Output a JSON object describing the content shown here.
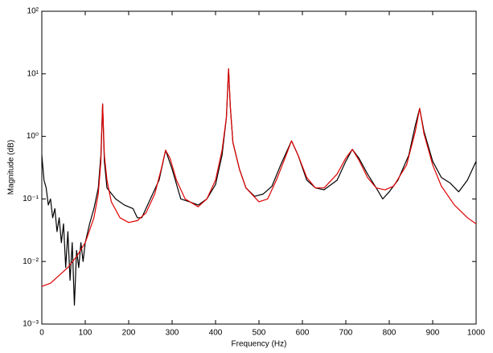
{
  "chart_data": {
    "type": "line",
    "xlabel": "Frequency (Hz)",
    "ylabel": "Magnitude (dB)",
    "xlim": [
      0,
      1000
    ],
    "xticks": [
      0,
      100,
      200,
      300,
      400,
      500,
      600,
      700,
      800,
      900,
      1000
    ],
    "ylim": [
      0.001,
      100
    ],
    "yscale": "log",
    "yticks": [
      {
        "value": 0.001,
        "label": "10⁻³"
      },
      {
        "value": 0.01,
        "label": "10⁻²"
      },
      {
        "value": 0.1,
        "label": "10⁻¹"
      },
      {
        "value": 1,
        "label": "10⁰"
      },
      {
        "value": 10,
        "label": "10¹"
      },
      {
        "value": 100,
        "label": "10²"
      }
    ],
    "series": [
      {
        "color": "#000000",
        "x": [
          0,
          5,
          10,
          15,
          20,
          25,
          30,
          35,
          40,
          45,
          50,
          55,
          60,
          65,
          70,
          75,
          80,
          85,
          90,
          95,
          100,
          110,
          120,
          130,
          136,
          140,
          144,
          150,
          170,
          190,
          210,
          220,
          230,
          250,
          270,
          285,
          300,
          320,
          340,
          360,
          380,
          400,
          415,
          425,
          430,
          434,
          440,
          455,
          470,
          490,
          510,
          530,
          550,
          575,
          590,
          610,
          630,
          650,
          680,
          700,
          715,
          730,
          750,
          770,
          785,
          800,
          820,
          845,
          860,
          870,
          880,
          900,
          920,
          940,
          960,
          980,
          1000
        ],
        "values": [
          0.5,
          0.2,
          0.15,
          0.08,
          0.1,
          0.05,
          0.07,
          0.03,
          0.05,
          0.02,
          0.04,
          0.008,
          0.03,
          0.005,
          0.02,
          0.002,
          0.015,
          0.008,
          0.02,
          0.01,
          0.02,
          0.04,
          0.07,
          0.15,
          0.5,
          3.3,
          0.4,
          0.15,
          0.1,
          0.08,
          0.07,
          0.05,
          0.05,
          0.1,
          0.2,
          0.6,
          0.3,
          0.1,
          0.09,
          0.08,
          0.1,
          0.17,
          0.5,
          2,
          12,
          3,
          0.8,
          0.3,
          0.15,
          0.11,
          0.12,
          0.16,
          0.35,
          0.85,
          0.5,
          0.2,
          0.15,
          0.14,
          0.2,
          0.4,
          0.62,
          0.45,
          0.25,
          0.15,
          0.1,
          0.13,
          0.2,
          0.5,
          1.5,
          2.8,
          1.2,
          0.4,
          0.22,
          0.18,
          0.13,
          0.2,
          0.4
        ]
      },
      {
        "color": "#e00000",
        "x": [
          0,
          20,
          40,
          60,
          80,
          100,
          120,
          130,
          136,
          140,
          144,
          150,
          160,
          180,
          200,
          220,
          240,
          260,
          275,
          285,
          295,
          310,
          330,
          360,
          380,
          400,
          415,
          425,
          430,
          434,
          440,
          455,
          470,
          500,
          520,
          540,
          560,
          575,
          590,
          610,
          630,
          650,
          680,
          700,
          715,
          730,
          750,
          770,
          790,
          810,
          840,
          860,
          870,
          880,
          900,
          920,
          950,
          980,
          1000
        ],
        "values": [
          0.004,
          0.0045,
          0.006,
          0.008,
          0.012,
          0.02,
          0.05,
          0.12,
          0.4,
          3.3,
          0.5,
          0.2,
          0.09,
          0.05,
          0.042,
          0.045,
          0.06,
          0.12,
          0.3,
          0.6,
          0.45,
          0.2,
          0.1,
          0.075,
          0.1,
          0.2,
          0.6,
          2,
          12,
          3,
          0.8,
          0.3,
          0.15,
          0.09,
          0.1,
          0.2,
          0.45,
          0.85,
          0.5,
          0.22,
          0.15,
          0.15,
          0.25,
          0.45,
          0.62,
          0.42,
          0.22,
          0.15,
          0.14,
          0.16,
          0.35,
          1.2,
          2.8,
          1.1,
          0.35,
          0.16,
          0.08,
          0.05,
          0.04
        ]
      }
    ]
  }
}
